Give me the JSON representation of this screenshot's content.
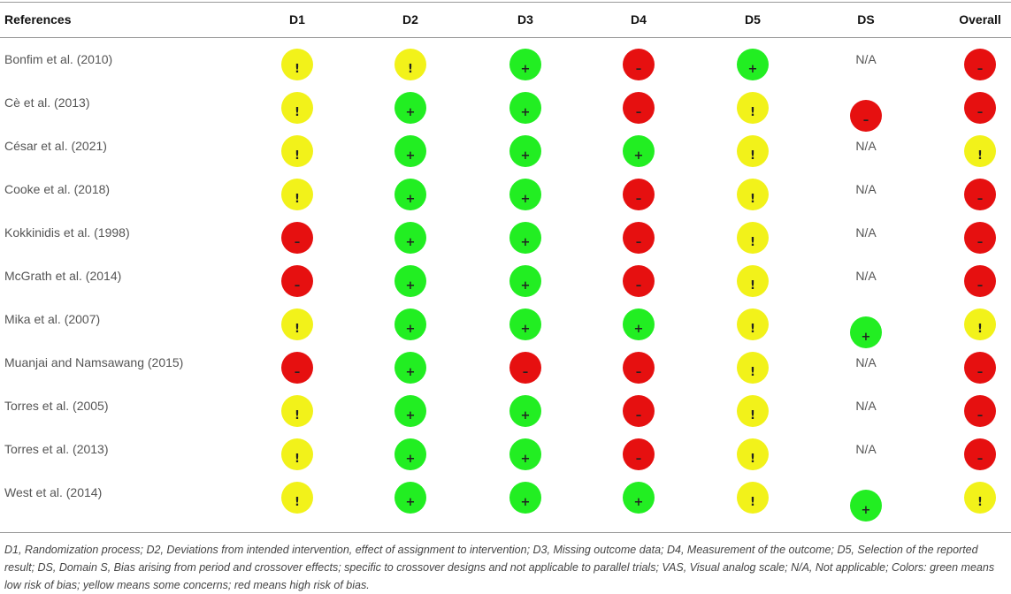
{
  "table": {
    "headers": [
      "References",
      "D1",
      "D2",
      "D3",
      "D4",
      "D5",
      "DS",
      "Overall"
    ],
    "legend_colors": {
      "+": "#22ee22",
      "!": "#f2f21a",
      "-": "#e61010"
    },
    "na_label": "N/A",
    "rows": [
      {
        "ref": "Bonfim et al. (2010)",
        "ratings": [
          "!",
          "!",
          "+",
          "-",
          "+",
          "N/A",
          "-"
        ]
      },
      {
        "ref": "Cè et al. (2013)",
        "ratings": [
          "!",
          "+",
          "+",
          "-",
          "!",
          "-",
          "-"
        ]
      },
      {
        "ref": "César et al. (2021)",
        "ratings": [
          "!",
          "+",
          "+",
          "+",
          "!",
          "N/A",
          "!"
        ]
      },
      {
        "ref": "Cooke et al. (2018)",
        "ratings": [
          "!",
          "+",
          "+",
          "-",
          "!",
          "N/A",
          "-"
        ]
      },
      {
        "ref": "Kokkinidis et al. (1998)",
        "ratings": [
          "-",
          "+",
          "+",
          "-",
          "!",
          "N/A",
          "-"
        ]
      },
      {
        "ref": "McGrath et al. (2014)",
        "ratings": [
          "-",
          "+",
          "+",
          "-",
          "!",
          "N/A",
          "-"
        ]
      },
      {
        "ref": "Mika et al. (2007)",
        "ratings": [
          "!",
          "+",
          "+",
          "+",
          "!",
          "+",
          "!"
        ]
      },
      {
        "ref": "Muanjai and Namsawang (2015)",
        "ratings": [
          "-",
          "+",
          "-",
          "-",
          "!",
          "N/A",
          "-"
        ]
      },
      {
        "ref": "Torres et al. (2005)",
        "ratings": [
          "!",
          "+",
          "+",
          "-",
          "!",
          "N/A",
          "-"
        ]
      },
      {
        "ref": "Torres et al. (2013)",
        "ratings": [
          "!",
          "+",
          "+",
          "-",
          "!",
          "N/A",
          "-"
        ]
      },
      {
        "ref": "West et al. (2014)",
        "ratings": [
          "!",
          "+",
          "+",
          "+",
          "!",
          "+",
          "!"
        ]
      }
    ]
  },
  "footnote": "D1, Randomization process; D2, Deviations from intended intervention, effect of assignment to intervention; D3, Missing outcome data; D4, Measurement of the outcome; D5, Selection of the reported result; DS, Domain S, Bias arising from period and crossover effects; specific to crossover designs and not applicable to parallel trials; VAS, Visual analog scale; N/A, Not applicable; Colors: green means low risk of bias; yellow means some concerns; red means high risk of bias."
}
